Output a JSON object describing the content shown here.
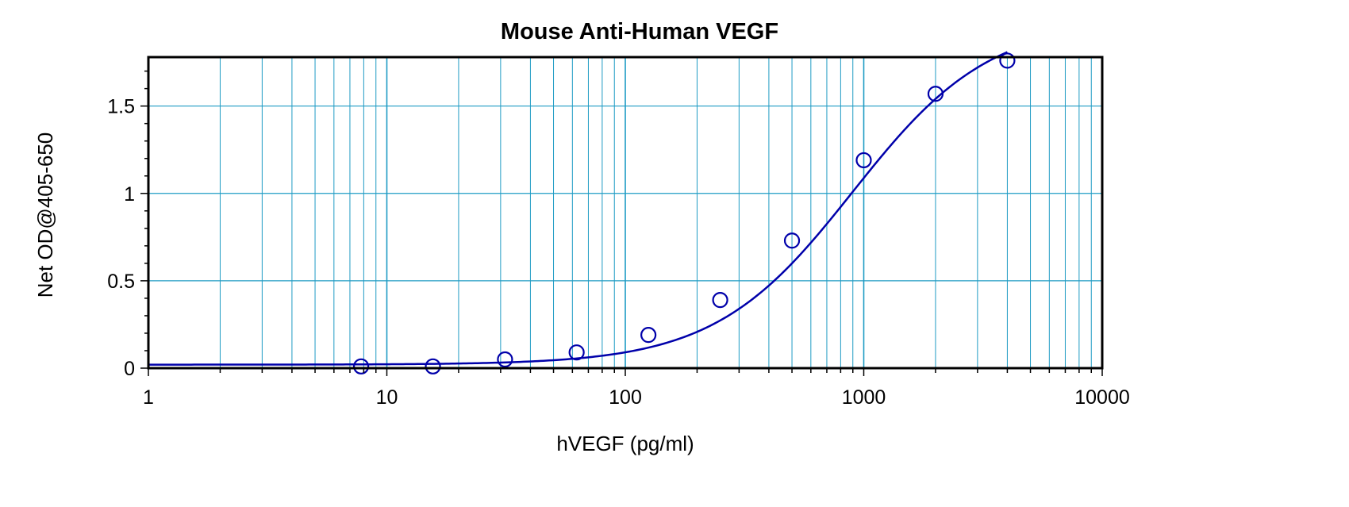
{
  "chart_data": {
    "type": "scatter",
    "title": "Mouse Anti-Human VEGF",
    "xlabel": "hVEGF (pg/ml)",
    "ylabel": "Net OD@405-650",
    "x_scale": "log",
    "xlim": [
      1,
      10000
    ],
    "ylim": [
      0,
      1.78
    ],
    "x_ticks": [
      1,
      10,
      100,
      1000,
      10000
    ],
    "x_tick_labels": [
      "1",
      "10",
      "100",
      "1000",
      "10000"
    ],
    "y_ticks": [
      0,
      0.5,
      1,
      1.5
    ],
    "y_tick_labels": [
      "0",
      "0.5",
      "1",
      "1.5"
    ],
    "grid": true,
    "legend": "none",
    "colors": {
      "series": "#0000aa",
      "grid": "#1e9bc4",
      "frame": "#000000"
    },
    "series": [
      {
        "marker": "open-circle",
        "x": [
          7.8,
          15.6,
          31.3,
          62.5,
          125,
          250,
          500,
          1000,
          2000,
          4000
        ],
        "y": [
          0.01,
          0.01,
          0.05,
          0.09,
          0.19,
          0.39,
          0.73,
          1.19,
          1.57,
          1.76
        ]
      }
    ],
    "fit_curve": {
      "type": "4PL",
      "bottom": 0.02,
      "top": 2.0,
      "ec50": 900,
      "hill": 1.5
    }
  }
}
